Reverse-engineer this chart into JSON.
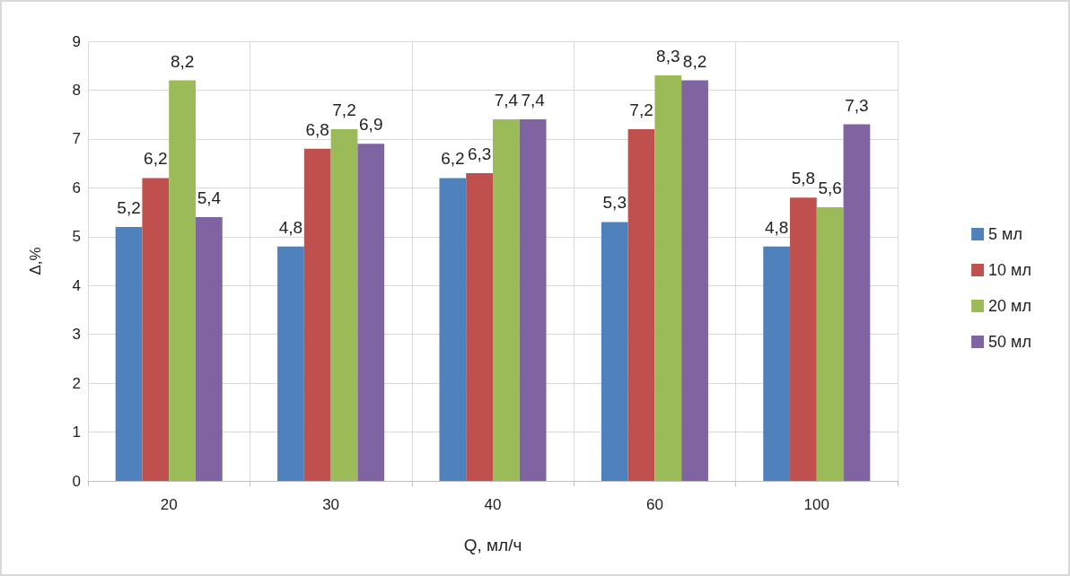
{
  "chart_data": {
    "type": "bar",
    "xlabel": "Q, мл/ч",
    "ylabel": "Δ,%",
    "categories": [
      "20",
      "30",
      "40",
      "60",
      "100"
    ],
    "series": [
      {
        "name": "5 мл",
        "color": "#4f81bd",
        "values": [
          5.2,
          4.8,
          6.2,
          5.3,
          4.8
        ],
        "value_labels": [
          "5,2",
          "4,8",
          "6,2",
          "5,3",
          "4,8"
        ]
      },
      {
        "name": "10 мл",
        "color": "#c0504d",
        "values": [
          6.2,
          6.8,
          6.3,
          7.2,
          5.8
        ],
        "value_labels": [
          "6,2",
          "6,8",
          "6,3",
          "7,2",
          "5,8"
        ]
      },
      {
        "name": "20 мл",
        "color": "#9bbb59",
        "values": [
          8.2,
          7.2,
          7.4,
          8.3,
          5.6
        ],
        "value_labels": [
          "8,2",
          "7,2",
          "7,4",
          "8,3",
          "5,6"
        ]
      },
      {
        "name": "50 мл",
        "color": "#8064a2",
        "values": [
          5.4,
          6.9,
          7.4,
          8.2,
          7.3
        ],
        "value_labels": [
          "5,4",
          "6,9",
          "7,4",
          "8,2",
          "7,3"
        ]
      }
    ],
    "ylim": [
      0,
      9
    ],
    "yticks": [
      0,
      1,
      2,
      3,
      4,
      5,
      6,
      7,
      8,
      9
    ],
    "grid": true,
    "legend": "right"
  }
}
